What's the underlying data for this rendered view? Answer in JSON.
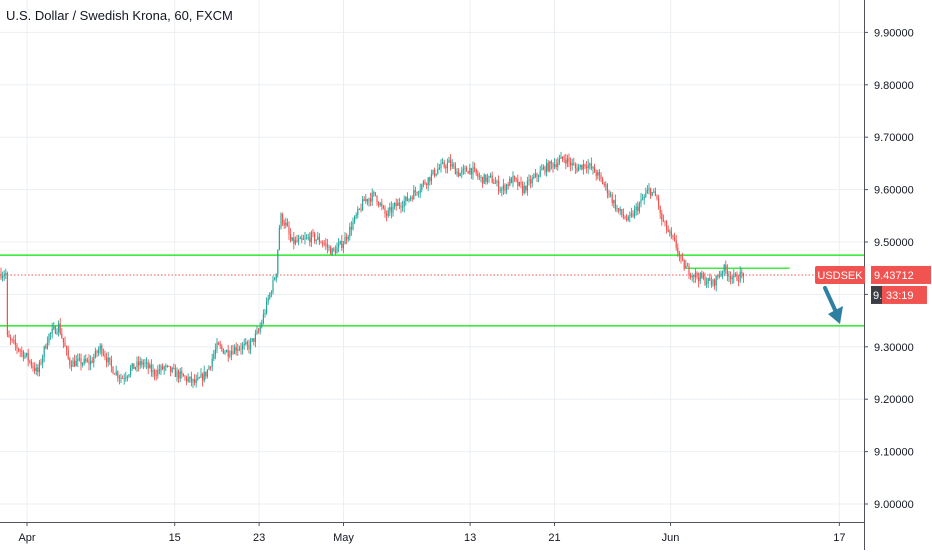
{
  "header": {
    "title": "U.S. Dollar / Swedish Krona, 60, FXCM"
  },
  "colors": {
    "up": "#26a69a",
    "down": "#ef5350",
    "level": "#00e600",
    "arrow": "#2f7fa3",
    "grid": "#eceff2",
    "label_red": "#f05350",
    "dark": "#3b3f45"
  },
  "badges": {
    "symbol": "USDSEK",
    "price": "9.43712",
    "price_short": "9.",
    "countdown": "33:19"
  },
  "chart_data": {
    "type": "candlestick",
    "title": "U.S. Dollar / Swedish Krona, 60, FXCM",
    "ylim": [
      8.96,
      9.98
    ],
    "y_ticks": [
      9.0,
      9.1,
      9.2,
      9.3,
      9.4,
      9.5,
      9.6,
      9.7,
      9.8,
      9.9
    ],
    "y_tick_labels": [
      "9.00000",
      "9.10000",
      "9.20000",
      "9.30000",
      "9.40000",
      "9.50000",
      "9.60000",
      "9.70000",
      "9.80000",
      "9.90000"
    ],
    "x_ticks": [
      {
        "label": "Apr",
        "day": 0
      },
      {
        "label": "15",
        "day": 14
      },
      {
        "label": "23",
        "day": 22
      },
      {
        "label": "May",
        "day": 30
      },
      {
        "label": "13",
        "day": 42
      },
      {
        "label": "21",
        "day": 50
      },
      {
        "label": "Jun",
        "day": 61
      },
      {
        "label": "17",
        "day": 77
      }
    ],
    "horizontal_levels": [
      9.475,
      9.34
    ],
    "short_level": 9.45,
    "current_price": 9.43712,
    "price_path": [
      [
        -2,
        9.32
      ],
      [
        0,
        9.28
      ],
      [
        1,
        9.25
      ],
      [
        2,
        9.32
      ],
      [
        3,
        9.34
      ],
      [
        4,
        9.27
      ],
      [
        6,
        9.27
      ],
      [
        7,
        9.3
      ],
      [
        8,
        9.26
      ],
      [
        9,
        9.24
      ],
      [
        10,
        9.26
      ],
      [
        11,
        9.27
      ],
      [
        12,
        9.25
      ],
      [
        13,
        9.26
      ],
      [
        14,
        9.25
      ],
      [
        15,
        9.24
      ],
      [
        16,
        9.23
      ],
      [
        17,
        9.25
      ],
      [
        18,
        9.3
      ],
      [
        19,
        9.29
      ],
      [
        20,
        9.3
      ],
      [
        21,
        9.3
      ],
      [
        22,
        9.33
      ],
      [
        23,
        9.4
      ],
      [
        23.6,
        9.44
      ],
      [
        24,
        9.55
      ],
      [
        24.6,
        9.53
      ],
      [
        25,
        9.5
      ],
      [
        26,
        9.5
      ],
      [
        27,
        9.51
      ],
      [
        28,
        9.5
      ],
      [
        29,
        9.48
      ],
      [
        30,
        9.5
      ],
      [
        31,
        9.54
      ],
      [
        32,
        9.58
      ],
      [
        33,
        9.59
      ],
      [
        34,
        9.55
      ],
      [
        35,
        9.57
      ],
      [
        36,
        9.58
      ],
      [
        37,
        9.6
      ],
      [
        38,
        9.62
      ],
      [
        39,
        9.64
      ],
      [
        40,
        9.65
      ],
      [
        41,
        9.63
      ],
      [
        42,
        9.64
      ],
      [
        43,
        9.62
      ],
      [
        44,
        9.62
      ],
      [
        45,
        9.6
      ],
      [
        46,
        9.62
      ],
      [
        47,
        9.6
      ],
      [
        48,
        9.62
      ],
      [
        49,
        9.64
      ],
      [
        50,
        9.65
      ],
      [
        51,
        9.66
      ],
      [
        52,
        9.64
      ],
      [
        53,
        9.65
      ],
      [
        54,
        9.63
      ],
      [
        55,
        9.6
      ],
      [
        56,
        9.56
      ],
      [
        57,
        9.54
      ],
      [
        58,
        9.57
      ],
      [
        59,
        9.6
      ],
      [
        59.8,
        9.58
      ],
      [
        60,
        9.55
      ],
      [
        61,
        9.51
      ],
      [
        61.6,
        9.49
      ],
      [
        62,
        9.46
      ],
      [
        63,
        9.44
      ],
      [
        64,
        9.43
      ],
      [
        65,
        9.42
      ],
      [
        66,
        9.45
      ],
      [
        67,
        9.43
      ],
      [
        68,
        9.44
      ]
    ]
  }
}
